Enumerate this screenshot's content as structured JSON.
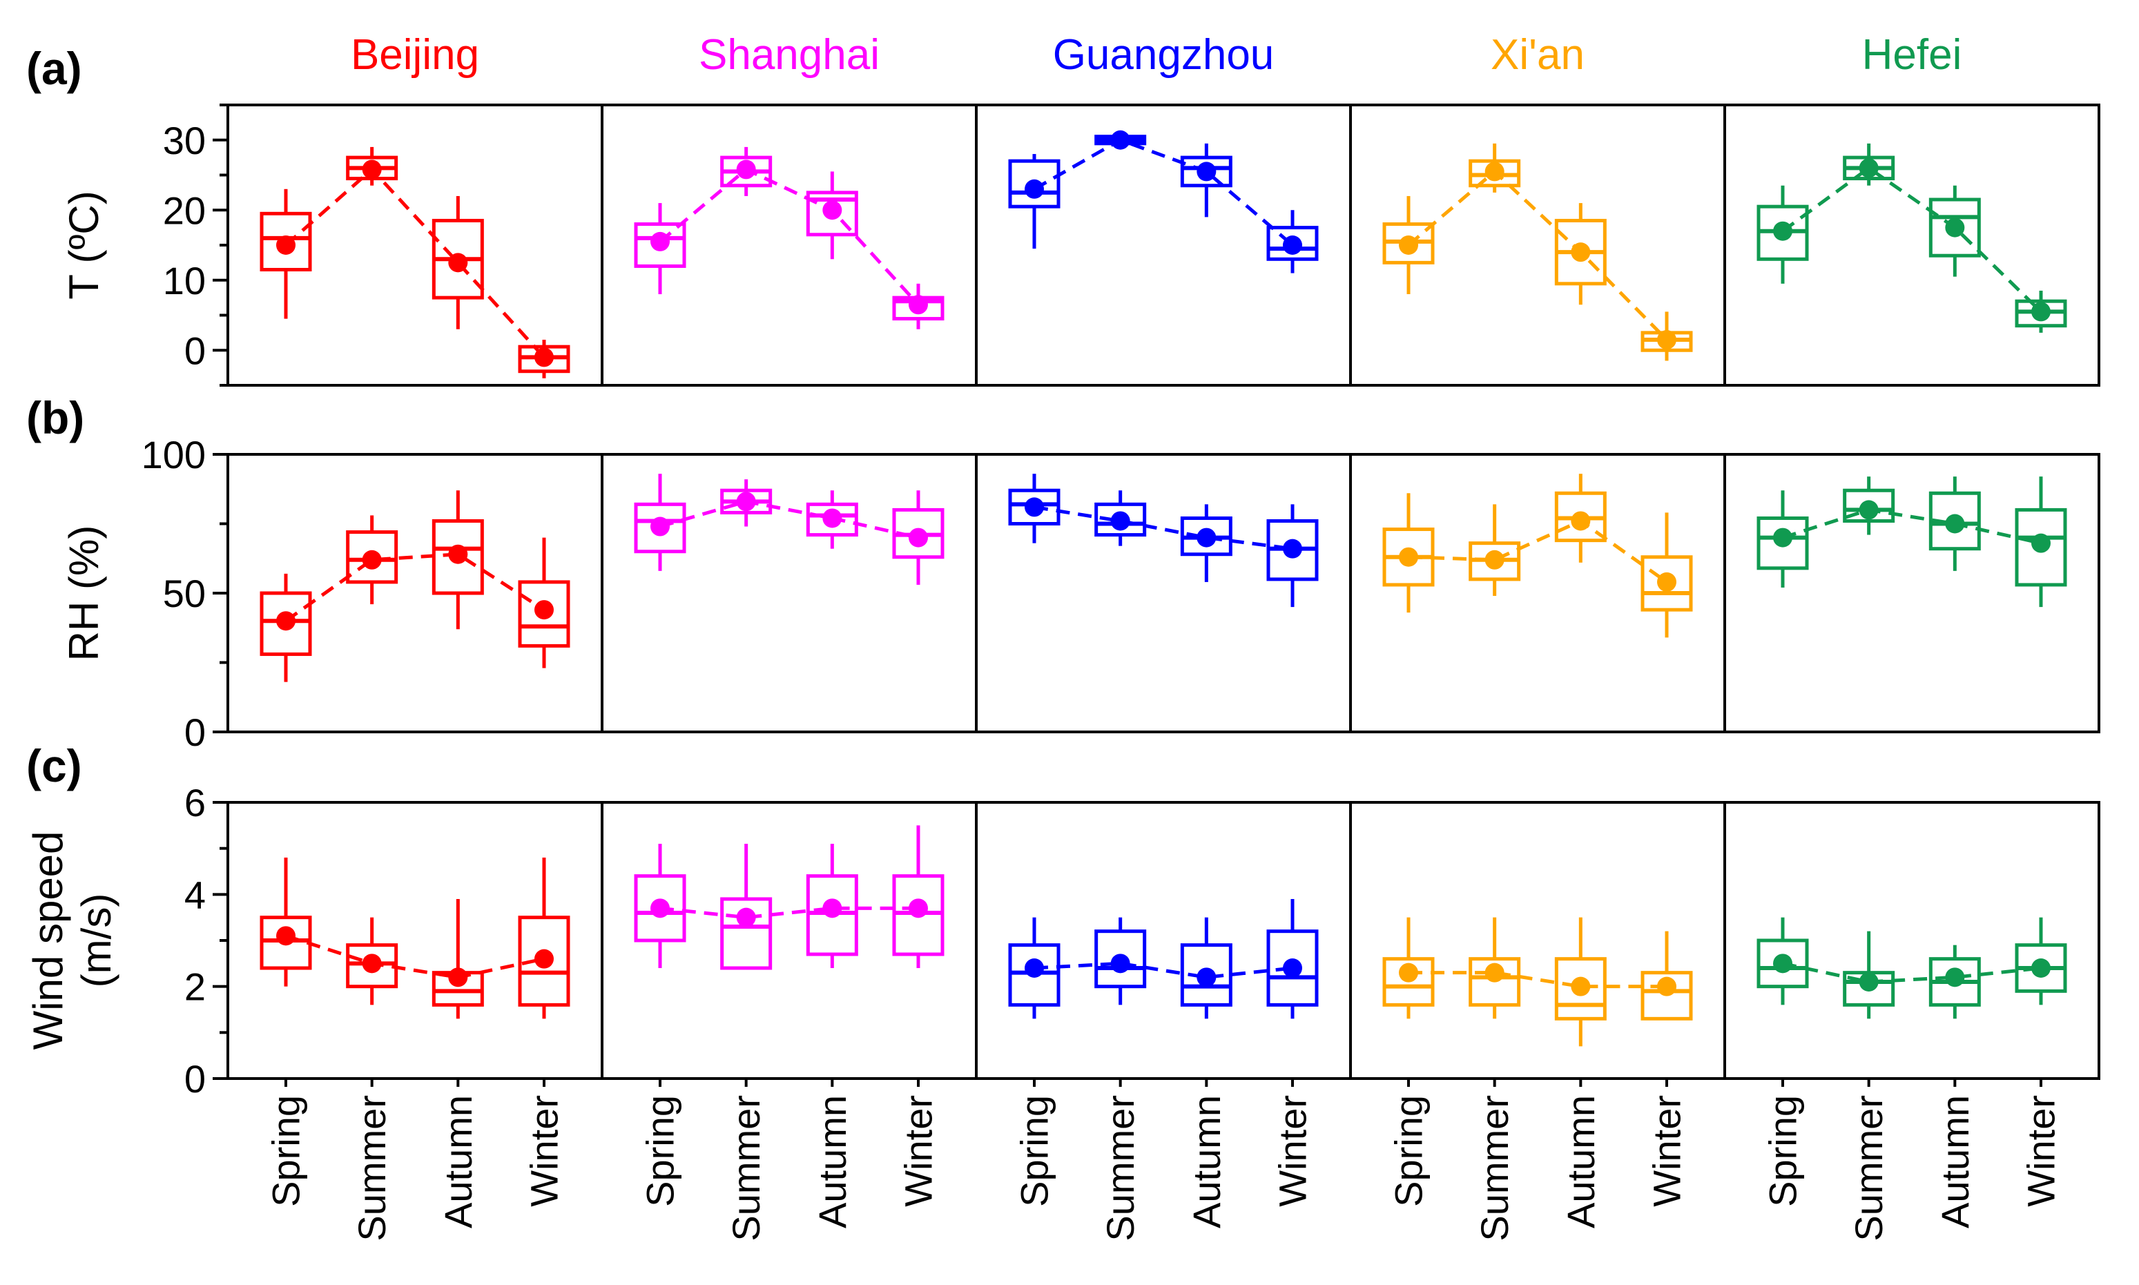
{
  "chart_data": {
    "type": "box",
    "seasons": [
      "Spring",
      "Summer",
      "Autumn",
      "Winter"
    ],
    "cities": [
      {
        "name": "Beijing",
        "color": "#FF0000"
      },
      {
        "name": "Shanghai",
        "color": "#FF00FF"
      },
      {
        "name": "Guangzhou",
        "color": "#0000FF"
      },
      {
        "name": "Xi'an",
        "color": "#FFA500"
      },
      {
        "name": "Hefei",
        "color": "#109A50"
      }
    ],
    "panels": [
      {
        "key": "T",
        "label": "(a)",
        "ylabel_lines": [
          "T (ºC)"
        ],
        "ylim": [
          -5,
          35
        ],
        "ticks": [
          0,
          10,
          20,
          30
        ],
        "minor_ticks": [
          -5,
          5,
          15,
          25,
          35
        ],
        "data": [
          [
            {
              "wl": 4.5,
              "q1": 11.5,
              "med": 16,
              "q3": 19.5,
              "wh": 23,
              "mean": 15
            },
            {
              "wl": 23.5,
              "q1": 24.5,
              "med": 26,
              "q3": 27.5,
              "wh": 29,
              "mean": 25.8
            },
            {
              "wl": 3,
              "q1": 7.5,
              "med": 13,
              "q3": 18.5,
              "wh": 22,
              "mean": 12.5
            },
            {
              "wl": -4,
              "q1": -3,
              "med": -1,
              "q3": 0.5,
              "wh": 1.5,
              "mean": -1
            }
          ],
          [
            {
              "wl": 8,
              "q1": 12,
              "med": 16,
              "q3": 18,
              "wh": 21,
              "mean": 15.5
            },
            {
              "wl": 22,
              "q1": 23.5,
              "med": 25.5,
              "q3": 27.5,
              "wh": 29,
              "mean": 25.8
            },
            {
              "wl": 13,
              "q1": 16.5,
              "med": 21.5,
              "q3": 22.5,
              "wh": 25.5,
              "mean": 20
            },
            {
              "wl": 3,
              "q1": 4.5,
              "med": 7,
              "q3": 7.5,
              "wh": 9.5,
              "mean": 6.5
            }
          ],
          [
            {
              "wl": 14.5,
              "q1": 20.5,
              "med": 22.5,
              "q3": 27,
              "wh": 28,
              "mean": 23
            },
            {
              "wl": 29.5,
              "q1": 29.5,
              "med": 30,
              "q3": 30.5,
              "wh": 31,
              "mean": 30
            },
            {
              "wl": 19,
              "q1": 23.5,
              "med": 26,
              "q3": 27.5,
              "wh": 29.5,
              "mean": 25.5
            },
            {
              "wl": 11,
              "q1": 13,
              "med": 14.5,
              "q3": 17.5,
              "wh": 20,
              "mean": 15
            }
          ],
          [
            {
              "wl": 8,
              "q1": 12.5,
              "med": 15.5,
              "q3": 18,
              "wh": 22,
              "mean": 15
            },
            {
              "wl": 22.5,
              "q1": 23.5,
              "med": 25,
              "q3": 27,
              "wh": 29.5,
              "mean": 25.5
            },
            {
              "wl": 6.5,
              "q1": 9.5,
              "med": 14,
              "q3": 18.5,
              "wh": 21,
              "mean": 14
            },
            {
              "wl": -1.5,
              "q1": 0,
              "med": 1.5,
              "q3": 2.5,
              "wh": 5.5,
              "mean": 1.5
            }
          ],
          [
            {
              "wl": 9.5,
              "q1": 13,
              "med": 17,
              "q3": 20.5,
              "wh": 23.5,
              "mean": 17
            },
            {
              "wl": 23.5,
              "q1": 24.5,
              "med": 26,
              "q3": 27.5,
              "wh": 29.5,
              "mean": 26
            },
            {
              "wl": 10.5,
              "q1": 13.5,
              "med": 19,
              "q3": 21.5,
              "wh": 23.5,
              "mean": 17.5
            },
            {
              "wl": 2.5,
              "q1": 3.5,
              "med": 5.5,
              "q3": 7,
              "wh": 8.5,
              "mean": 5.5
            }
          ]
        ]
      },
      {
        "key": "RH",
        "label": "(b)",
        "ylabel_lines": [
          "RH (%)"
        ],
        "ylim": [
          0,
          100
        ],
        "ticks": [
          0,
          50,
          100
        ],
        "minor_ticks": [
          25,
          75
        ],
        "data": [
          [
            {
              "wl": 18,
              "q1": 28,
              "med": 40,
              "q3": 50,
              "wh": 57,
              "mean": 40
            },
            {
              "wl": 46,
              "q1": 54,
              "med": 62,
              "q3": 72,
              "wh": 78,
              "mean": 62
            },
            {
              "wl": 37,
              "q1": 50,
              "med": 66,
              "q3": 76,
              "wh": 87,
              "mean": 64
            },
            {
              "wl": 23,
              "q1": 31,
              "med": 38,
              "q3": 54,
              "wh": 70,
              "mean": 44
            }
          ],
          [
            {
              "wl": 58,
              "q1": 65,
              "med": 76,
              "q3": 82,
              "wh": 93,
              "mean": 74
            },
            {
              "wl": 74,
              "q1": 79,
              "med": 83,
              "q3": 87,
              "wh": 91,
              "mean": 83
            },
            {
              "wl": 66,
              "q1": 71,
              "med": 78,
              "q3": 82,
              "wh": 87,
              "mean": 77
            },
            {
              "wl": 53,
              "q1": 63,
              "med": 71,
              "q3": 80,
              "wh": 87,
              "mean": 70
            }
          ],
          [
            {
              "wl": 68,
              "q1": 75,
              "med": 82,
              "q3": 87,
              "wh": 93,
              "mean": 81
            },
            {
              "wl": 67,
              "q1": 71,
              "med": 75,
              "q3": 82,
              "wh": 87,
              "mean": 76
            },
            {
              "wl": 54,
              "q1": 64,
              "med": 70,
              "q3": 77,
              "wh": 82,
              "mean": 70
            },
            {
              "wl": 45,
              "q1": 55,
              "med": 66,
              "q3": 76,
              "wh": 82,
              "mean": 66
            }
          ],
          [
            {
              "wl": 43,
              "q1": 53,
              "med": 63,
              "q3": 73,
              "wh": 86,
              "mean": 63
            },
            {
              "wl": 49,
              "q1": 55,
              "med": 62,
              "q3": 68,
              "wh": 82,
              "mean": 62
            },
            {
              "wl": 61,
              "q1": 69,
              "med": 77,
              "q3": 86,
              "wh": 93,
              "mean": 76
            },
            {
              "wl": 34,
              "q1": 44,
              "med": 50,
              "q3": 63,
              "wh": 79,
              "mean": 54
            }
          ],
          [
            {
              "wl": 52,
              "q1": 59,
              "med": 70,
              "q3": 77,
              "wh": 87,
              "mean": 70
            },
            {
              "wl": 71,
              "q1": 76,
              "med": 80,
              "q3": 87,
              "wh": 92,
              "mean": 80
            },
            {
              "wl": 58,
              "q1": 66,
              "med": 75,
              "q3": 86,
              "wh": 92,
              "mean": 75
            },
            {
              "wl": 45,
              "q1": 53,
              "med": 70,
              "q3": 80,
              "wh": 92,
              "mean": 68
            }
          ]
        ]
      },
      {
        "key": "WS",
        "label": "(c)",
        "ylabel_lines": [
          "Wind speed",
          "(m/s)"
        ],
        "ylim": [
          0,
          6
        ],
        "ticks": [
          0,
          2,
          4,
          6
        ],
        "minor_ticks": [
          1,
          3,
          5
        ],
        "data": [
          [
            {
              "wl": 2.0,
              "q1": 2.4,
              "med": 3.0,
              "q3": 3.5,
              "wh": 4.8,
              "mean": 3.1
            },
            {
              "wl": 1.6,
              "q1": 2.0,
              "med": 2.5,
              "q3": 2.9,
              "wh": 3.5,
              "mean": 2.5
            },
            {
              "wl": 1.3,
              "q1": 1.6,
              "med": 1.9,
              "q3": 2.3,
              "wh": 3.9,
              "mean": 2.2
            },
            {
              "wl": 1.3,
              "q1": 1.6,
              "med": 2.3,
              "q3": 3.5,
              "wh": 4.8,
              "mean": 2.6
            }
          ],
          [
            {
              "wl": 2.4,
              "q1": 3.0,
              "med": 3.6,
              "q3": 4.4,
              "wh": 5.1,
              "mean": 3.7
            },
            {
              "wl": 2.4,
              "q1": 2.4,
              "med": 3.3,
              "q3": 3.9,
              "wh": 5.1,
              "mean": 3.5
            },
            {
              "wl": 2.4,
              "q1": 2.7,
              "med": 3.6,
              "q3": 4.4,
              "wh": 5.1,
              "mean": 3.7
            },
            {
              "wl": 2.4,
              "q1": 2.7,
              "med": 3.6,
              "q3": 4.4,
              "wh": 5.5,
              "mean": 3.7
            }
          ],
          [
            {
              "wl": 1.3,
              "q1": 1.6,
              "med": 2.3,
              "q3": 2.9,
              "wh": 3.5,
              "mean": 2.4
            },
            {
              "wl": 1.6,
              "q1": 2.0,
              "med": 2.4,
              "q3": 3.2,
              "wh": 3.5,
              "mean": 2.5
            },
            {
              "wl": 1.3,
              "q1": 1.6,
              "med": 2.0,
              "q3": 2.9,
              "wh": 3.5,
              "mean": 2.2
            },
            {
              "wl": 1.3,
              "q1": 1.6,
              "med": 2.2,
              "q3": 3.2,
              "wh": 3.9,
              "mean": 2.4
            }
          ],
          [
            {
              "wl": 1.3,
              "q1": 1.6,
              "med": 2.0,
              "q3": 2.6,
              "wh": 3.5,
              "mean": 2.3
            },
            {
              "wl": 1.3,
              "q1": 1.6,
              "med": 2.2,
              "q3": 2.6,
              "wh": 3.5,
              "mean": 2.3
            },
            {
              "wl": 0.7,
              "q1": 1.3,
              "med": 1.6,
              "q3": 2.6,
              "wh": 3.5,
              "mean": 2.0
            },
            {
              "wl": 1.3,
              "q1": 1.3,
              "med": 1.9,
              "q3": 2.3,
              "wh": 3.2,
              "mean": 2.0
            }
          ],
          [
            {
              "wl": 1.6,
              "q1": 2.0,
              "med": 2.4,
              "q3": 3.0,
              "wh": 3.5,
              "mean": 2.5
            },
            {
              "wl": 1.3,
              "q1": 1.6,
              "med": 2.1,
              "q3": 2.3,
              "wh": 3.2,
              "mean": 2.1
            },
            {
              "wl": 1.3,
              "q1": 1.6,
              "med": 2.1,
              "q3": 2.6,
              "wh": 2.9,
              "mean": 2.2
            },
            {
              "wl": 1.6,
              "q1": 1.9,
              "med": 2.4,
              "q3": 2.9,
              "wh": 3.5,
              "mean": 2.4
            }
          ]
        ]
      }
    ]
  }
}
